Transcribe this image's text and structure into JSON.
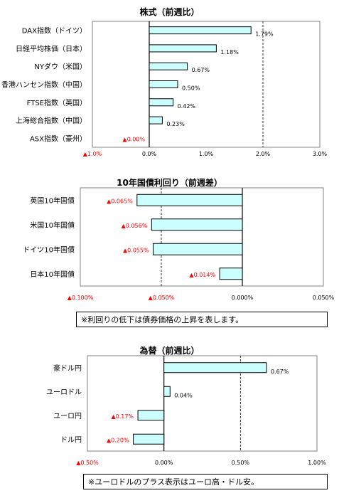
{
  "colors": {
    "bar_fill": "#ccffff",
    "bar_stroke": "#000000",
    "negative_text": "#ff0000",
    "frame": "#808080"
  },
  "chart_data": [
    {
      "type": "bar",
      "orientation": "horizontal",
      "title": "株式（前週比）",
      "categories": [
        "DAX指数（ドイツ）",
        "日経平均株価（日本）",
        "NYダウ（米国）",
        "香港ハンセン指数（中国）",
        "FTSE指数（英国）",
        "上海総合指数（中国）",
        "ASX指数（豪州）"
      ],
      "values": [
        1.79,
        1.18,
        0.67,
        0.5,
        0.42,
        0.23,
        0.0
      ],
      "value_labels": [
        "1.79%",
        "1.18%",
        "0.67%",
        "0.50%",
        "0.42%",
        "0.23%",
        "▲0.00%"
      ],
      "xlim": [
        -1.0,
        3.0
      ],
      "ticks": [
        -1.0,
        0.0,
        1.0,
        2.0,
        3.0
      ],
      "tick_labels": [
        "▲1.0%",
        "0.0%",
        "1.0%",
        "2.0%",
        "3.0%"
      ],
      "gridlines": [
        2.0
      ]
    },
    {
      "type": "bar",
      "orientation": "horizontal",
      "title": "10年国債利回り（前週差）",
      "categories": [
        "英国10年国債",
        "米国10年国債",
        "ドイツ10年国債",
        "日本10年国債"
      ],
      "values": [
        -0.065,
        -0.056,
        -0.055,
        -0.014
      ],
      "value_labels": [
        "▲0.065%",
        "▲0.056%",
        "▲0.055%",
        "▲0.014%"
      ],
      "xlim": [
        -0.1,
        0.05
      ],
      "ticks": [
        -0.1,
        -0.05,
        0.0,
        0.05
      ],
      "tick_labels": [
        "▲0.100%",
        "▲0.050%",
        "0.000%",
        "0.050%"
      ],
      "gridlines": [
        -0.05
      ],
      "note": "※利回りの低下は債券価格の上昇を表します。"
    },
    {
      "type": "bar",
      "orientation": "horizontal",
      "title": "為替（前週比）",
      "categories": [
        "豪ドル円",
        "ユーロドル",
        "ユーロ円",
        "ドル円"
      ],
      "values": [
        0.67,
        0.04,
        -0.17,
        -0.2
      ],
      "value_labels": [
        "0.67%",
        "0.04%",
        "▲0.17%",
        "▲0.20%"
      ],
      "xlim": [
        -0.5,
        1.0
      ],
      "ticks": [
        -0.5,
        0.0,
        0.5,
        1.0
      ],
      "tick_labels": [
        "▲0.50%",
        "0.00%",
        "0.50%",
        "1.00%"
      ],
      "gridlines": [
        0.5
      ],
      "note": "※ユーロドルのプラス表示はユーロ高・ドル安。"
    }
  ]
}
